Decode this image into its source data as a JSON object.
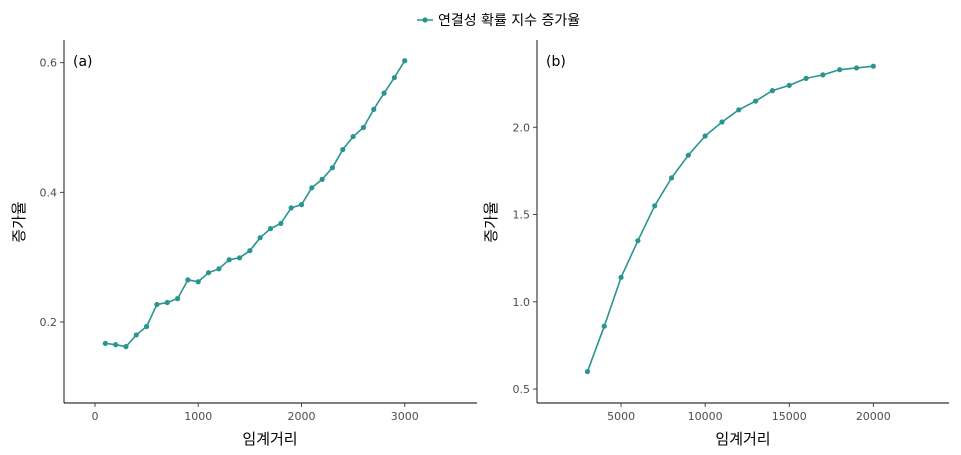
{
  "legend": {
    "label": "연결성 확률 지수 증가율",
    "color": "#2a9490"
  },
  "chart_data": [
    {
      "type": "line",
      "panel_label": "(a)",
      "xlabel": "임계거리",
      "ylabel": "증가율",
      "xlim": [
        -300,
        3700
      ],
      "ylim": [
        0.075,
        0.635
      ],
      "xticks": [
        0,
        1000,
        2000,
        3000
      ],
      "xtick_labels": [
        "0",
        "1000",
        "2000",
        "3000"
      ],
      "yticks": [
        0.2,
        0.4,
        0.6
      ],
      "ytick_labels": [
        "0.2",
        "0.4",
        "0.6"
      ],
      "series": [
        {
          "x": [
            100,
            200,
            300,
            400,
            500,
            600,
            700,
            800,
            900,
            1000,
            1100,
            1200,
            1300,
            1400,
            1500,
            1600,
            1700,
            1800,
            1900,
            2000,
            2100,
            2200,
            2300,
            2400,
            2500,
            2600,
            2700,
            2800,
            2900,
            3000
          ],
          "y": [
            0.167,
            0.165,
            0.162,
            0.18,
            0.193,
            0.227,
            0.23,
            0.236,
            0.265,
            0.262,
            0.276,
            0.282,
            0.296,
            0.299,
            0.31,
            0.33,
            0.344,
            0.352,
            0.376,
            0.381,
            0.407,
            0.42,
            0.438,
            0.466,
            0.486,
            0.5,
            0.528,
            0.553,
            0.577,
            0.603
          ]
        }
      ]
    },
    {
      "type": "line",
      "panel_label": "(b)",
      "xlabel": "임계거리",
      "ylabel": "증가율",
      "xlim": [
        0,
        24500
      ],
      "ylim": [
        0.42,
        2.5
      ],
      "xticks": [
        5000,
        10000,
        15000,
        20000
      ],
      "xtick_labels": [
        "5000",
        "10000",
        "15000",
        "20000"
      ],
      "yticks": [
        0.5,
        1.0,
        1.5,
        2.0
      ],
      "ytick_labels": [
        "0.5",
        "1.0",
        "1.5",
        "2.0"
      ],
      "series": [
        {
          "x": [
            3000,
            4000,
            5000,
            6000,
            7000,
            8000,
            9000,
            10000,
            11000,
            12000,
            13000,
            14000,
            15000,
            16000,
            17000,
            18000,
            19000,
            20000
          ],
          "y": [
            0.6,
            0.86,
            1.14,
            1.35,
            1.55,
            1.71,
            1.84,
            1.95,
            2.03,
            2.1,
            2.15,
            2.21,
            2.24,
            2.28,
            2.3,
            2.33,
            2.34,
            2.35
          ]
        }
      ]
    }
  ]
}
